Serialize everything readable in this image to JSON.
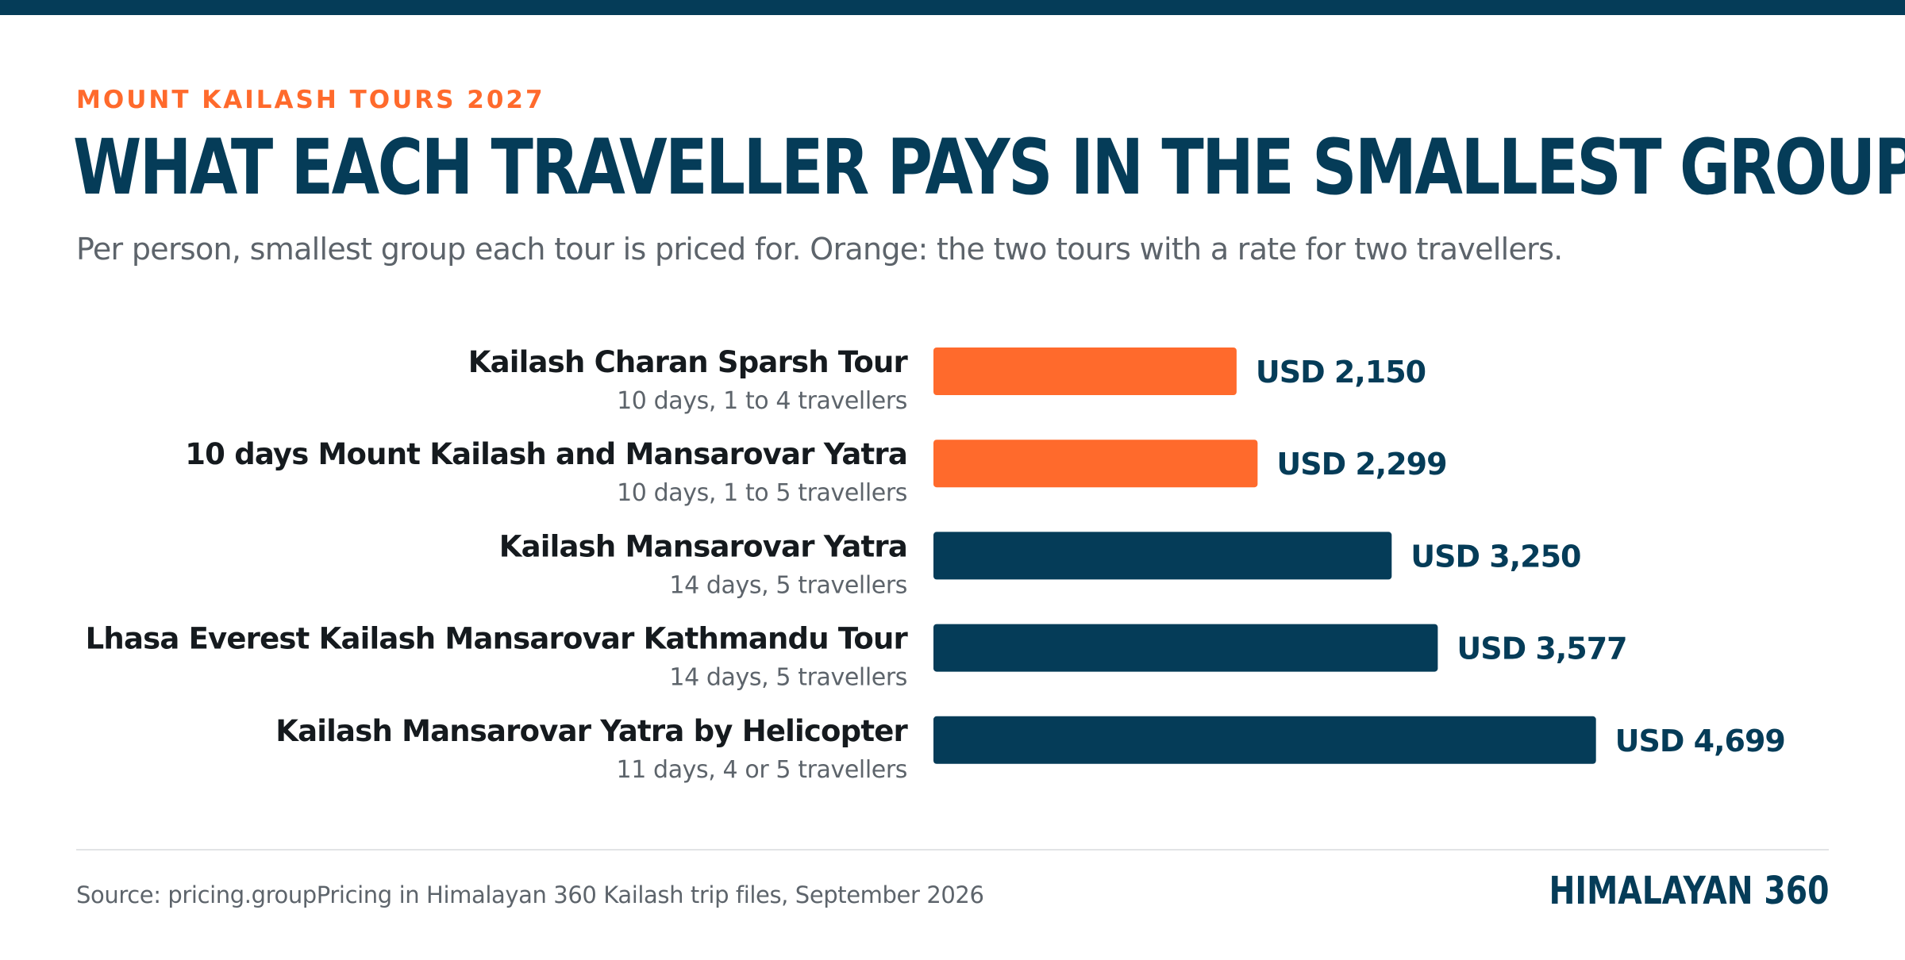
{
  "kicker": "MOUNT KAILASH TOURS 2027",
  "title": "WHAT EACH TRAVELLER PAYS IN THE SMALLEST GROUP",
  "subtitle": "Per person, smallest group each tour is priced for. Orange: the two tours with a rate for two travellers.",
  "source": "Source: pricing.groupPricing in Himalayan 360 Kailash trip files, September 2026",
  "brand": "HIMALAYAN 360",
  "colors": {
    "accent": "#ff6a2c",
    "primary": "#053c58",
    "label": "#151a1e",
    "muted": "#5d646b",
    "divider": "#e2e4e6"
  },
  "chart_data": {
    "type": "bar",
    "orientation": "horizontal",
    "currency_prefix": "USD",
    "xlim": [
      0,
      5000
    ],
    "grid": false,
    "legend": "none",
    "categories": [
      "Kailash Charan Sparsh Tour",
      "10 days Mount Kailash and Mansarovar Yatra",
      "Kailash Mansarovar Yatra",
      "Lhasa Everest Kailash Mansarovar Kathmandu Tour",
      "Kailash Mansarovar Yatra by Helicopter"
    ],
    "details": [
      "10 days, 1 to 4 travellers",
      "10 days, 1 to 5 travellers",
      "14 days, 5 travellers",
      "14 days, 5 travellers",
      "11 days, 4 or 5 travellers"
    ],
    "values": [
      2150,
      2299,
      3250,
      3577,
      4699
    ],
    "value_labels": [
      "USD 2,150",
      "USD 2,299",
      "USD 3,250",
      "USD 3,577",
      "USD 4,699"
    ],
    "highlight": [
      true,
      true,
      false,
      false,
      false
    ]
  }
}
